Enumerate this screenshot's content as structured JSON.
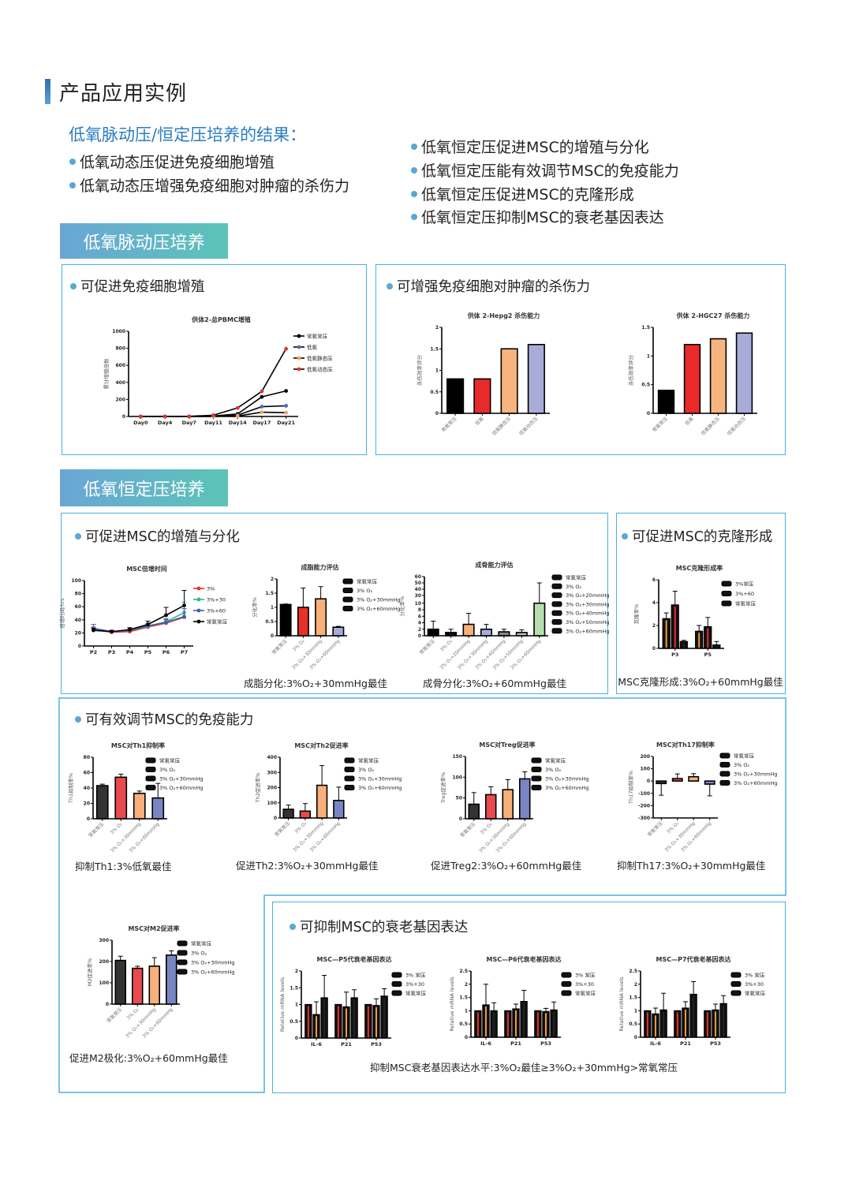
{
  "header": {
    "title": "产品应用实例"
  },
  "summary": {
    "heading": "低氧脉动压/恒定压培养的结果：",
    "left": [
      "低氧动态压促进免疫细胞增殖",
      "低氧动态压增强免疫细胞对肿瘤的杀伤力"
    ],
    "right": [
      "低氧恒定压促进MSC的增殖与分化",
      "低氧恒定压能有效调节MSC的免疫能力",
      "低氧恒定压促进MSC的克隆形成",
      "低氧恒定压抑制MSC的衰老基因表达"
    ]
  },
  "sections": {
    "pulse_banner": "低氧脉动压培养",
    "constant_banner": "低氧恒定压培养"
  },
  "panels": {
    "pbmc": "可促进免疫细胞增殖",
    "kill": "可增强免疫细胞对肿瘤的杀伤力",
    "msc_diff": "可促进MSC的增殖与分化",
    "clone": "可促进MSC的克隆形成",
    "immune": "可有效调节MSC的免疫能力",
    "senescence": "可抑制MSC的衰老基因表达"
  },
  "captions": {
    "adipo": "成脂分化:3%O₂+30mmHg最佳",
    "osteo": "成骨分化:3%O₂+60mmHg最佳",
    "clone": "MSC克隆形成:3%O₂+60mmHg最佳",
    "th1": "抑制Th1:3%低氧最佳",
    "th2": "促进Th2:3%O₂+30mmHg最佳",
    "treg": "促进Treg2:3%O₂+60mmHg最佳",
    "th17": "抑制Th17:3%O₂+30mmHg最佳",
    "m2": "促进M2极化:3%O₂+60mmHg最佳",
    "senescence": "抑制MSC衰老基因表达水平:3%O₂最佳≥3%O₂+30mmHg>常氧常压"
  },
  "colors": {
    "accent": "#2a7dc0",
    "border": "#4ab0e0",
    "banner_from": "#6aa6d6",
    "banner_to": "#5cc4b8"
  },
  "chart_data": [
    {
      "id": "pbmc",
      "type": "line",
      "title": "供体2-总PBMC增殖",
      "ylabel": "累计增殖倍数",
      "ylim": [
        0,
        1000
      ],
      "yticks": [
        0,
        200,
        400,
        600,
        800,
        1000
      ],
      "x": [
        "Day0",
        "Day4",
        "Day7",
        "Day11",
        "Day14",
        "Day17",
        "Day21"
      ],
      "series": [
        {
          "name": "常氧常压",
          "color": "#000000",
          "values": [
            0,
            0,
            0,
            5,
            30,
            230,
            300
          ]
        },
        {
          "name": "低氧",
          "color": "#4a6fc0",
          "values": [
            0,
            0,
            0,
            3,
            15,
            115,
            125
          ]
        },
        {
          "name": "低氧静态压",
          "color": "#f5a05a",
          "values": [
            0,
            0,
            0,
            2,
            5,
            50,
            45
          ]
        },
        {
          "name": "低氧动态压",
          "color": "#e83030",
          "values": [
            0,
            0,
            2,
            15,
            100,
            295,
            795
          ]
        }
      ]
    },
    {
      "id": "hepg2",
      "type": "bar",
      "title": "供体 2-Hepg2 杀伤能力",
      "ylabel": "杀伤效率评分",
      "ylim": [
        0,
        2
      ],
      "yticks": [
        0,
        0.5,
        1.0,
        1.5,
        2.0
      ],
      "categories": [
        "常氧常压",
        "低氧",
        "低氧静态压",
        "低氧动态压"
      ],
      "colors": [
        "#000000",
        "#e82a2a",
        "#f8b47e",
        "#a9acd8"
      ],
      "values": [
        0.8,
        0.8,
        1.5,
        1.6
      ]
    },
    {
      "id": "hgc27",
      "type": "bar",
      "title": "供体 2-HGC27 杀伤能力",
      "ylabel": "杀伤效率评分",
      "ylim": [
        0,
        1.5
      ],
      "yticks": [
        0,
        0.5,
        1.0,
        1.5
      ],
      "categories": [
        "常氧常压",
        "低氧",
        "低氧静态压",
        "低氧动态压"
      ],
      "colors": [
        "#000000",
        "#e82a2a",
        "#f8b47e",
        "#a9acd8"
      ],
      "values": [
        0.4,
        1.2,
        1.3,
        1.4
      ]
    },
    {
      "id": "doubling",
      "type": "line",
      "title": "MSC倍增时间",
      "ylabel": "倍增时间/hrs",
      "ylim": [
        0,
        100
      ],
      "yticks": [
        0,
        20,
        40,
        60,
        80,
        100
      ],
      "x": [
        "P2",
        "P3",
        "P4",
        "P5",
        "P6",
        "P7"
      ],
      "series": [
        {
          "name": "3%",
          "color": "#e83030",
          "values": [
            25,
            21,
            22,
            29,
            35,
            44
          ],
          "errors": [
            4,
            2,
            2,
            4,
            5,
            13
          ]
        },
        {
          "name": "3%+30",
          "color": "#2fb58a",
          "values": [
            24,
            22,
            24,
            30,
            37,
            51
          ],
          "errors": [
            3,
            2,
            3,
            5,
            5,
            16
          ]
        },
        {
          "name": "3%+60",
          "color": "#3a5fb0",
          "values": [
            27,
            22,
            24,
            31,
            36,
            45
          ],
          "errors": [
            6,
            2,
            3,
            4,
            5,
            12
          ]
        },
        {
          "name": "常氧常压",
          "color": "#000000",
          "values": [
            24,
            22,
            25,
            33,
            47,
            62
          ],
          "errors": [
            3,
            2,
            3,
            5,
            12,
            23
          ]
        }
      ]
    },
    {
      "id": "adipo",
      "type": "bar",
      "title": "成脂能力评估",
      "ylabel": "分化率%",
      "ylim": [
        0,
        2
      ],
      "yticks": [
        0,
        0.5,
        1.0,
        1.5,
        2.0
      ],
      "categories": [
        "常氧常压",
        "3% O₂",
        "3% O₂+30mmHg",
        "3% O₂+60mmHg"
      ],
      "colors": [
        "#000000",
        "#e8302a",
        "#f8b07a",
        "#a9acd8"
      ],
      "values": [
        1.1,
        1.0,
        1.3,
        0.3
      ],
      "errors": [
        0.02,
        0.68,
        0.43,
        0.03
      ]
    },
    {
      "id": "osteo",
      "type": "bar",
      "title": "成骨能力评估",
      "ylabel": "分化率%",
      "ylim": [
        0,
        60
      ],
      "break": [
        10,
        30
      ],
      "yticks": [
        0,
        2,
        4,
        6,
        8,
        10,
        30,
        40,
        50,
        60
      ],
      "categories": [
        "常氧常压",
        "3% O₂",
        "3% O₂+20mmHg",
        "3% O₂+30mmHg",
        "3% O₂+40mmHg",
        "3% O₂+50mmHg",
        "3% O₂+60mmHg"
      ],
      "colors": [
        "#000000",
        "#111111",
        "#f8b07a",
        "#a9acd8",
        "#888888",
        "#bbbbbb",
        "#b8ddb0"
      ],
      "values": [
        2,
        1,
        3.5,
        2,
        1.2,
        1,
        10
      ],
      "errors": [
        2.5,
        1,
        3.4,
        1.5,
        0.8,
        0.8,
        40
      ]
    },
    {
      "id": "clone",
      "type": "grouped",
      "title": "MSC克隆形成率",
      "ylabel": "克隆率%",
      "ylim": [
        0,
        6
      ],
      "yticks": [
        0,
        2,
        4,
        6
      ],
      "categories": [
        "P3",
        "P5"
      ],
      "series": [
        {
          "name": "3%常压",
          "color": "#f39a3a",
          "values": [
            2.6,
            1.5
          ],
          "errors": [
            0.5,
            0.5
          ]
        },
        {
          "name": "3%+60",
          "color": "#e8302a",
          "values": [
            3.8,
            1.9
          ],
          "errors": [
            1.2,
            0.8
          ]
        },
        {
          "name": "常氧常压",
          "color": "#222222",
          "values": [
            0.6,
            0.3
          ],
          "errors": [
            0.1,
            0.3
          ]
        }
      ]
    },
    {
      "id": "th1",
      "type": "bar",
      "title": "MSC对Th1抑制率",
      "ylabel": "Th1抑制率%",
      "ylim": [
        0,
        80
      ],
      "yticks": [
        0,
        20,
        40,
        60,
        80
      ],
      "categories": [
        "常氧常压",
        "3% O₂",
        "3% O₂+30mmHg",
        "3% O₂+60mmHg"
      ],
      "colors": [
        "#333333",
        "#e84a50",
        "#f8b07a",
        "#7a86c4"
      ],
      "values": [
        43,
        54,
        33,
        27
      ],
      "errors": [
        2,
        4,
        3,
        19
      ]
    },
    {
      "id": "th2",
      "type": "bar",
      "title": "MSC对Th2促进率",
      "ylabel": "Th2促进率%",
      "ylim": [
        0,
        400
      ],
      "yticks": [
        0,
        100,
        200,
        300,
        400
      ],
      "categories": [
        "常氧常压",
        "3% O₂",
        "3% O₂+30mmHg",
        "3% O₂+60mmHg"
      ],
      "colors": [
        "#333333",
        "#e84a50",
        "#f8b07a",
        "#7a86c4"
      ],
      "values": [
        57,
        45,
        215,
        115
      ],
      "errors": [
        28,
        50,
        130,
        88
      ]
    },
    {
      "id": "treg",
      "type": "bar",
      "title": "MSC对Treg促进率",
      "ylabel": "Treg促进率%",
      "ylim": [
        0,
        150
      ],
      "yticks": [
        0,
        50,
        100,
        150
      ],
      "categories": [
        "常氧常压",
        "3% O₂",
        "3% O₂+30mmHg",
        "3% O₂+60mmHg"
      ],
      "colors": [
        "#333333",
        "#e84a50",
        "#f8b07a",
        "#7a86c4"
      ],
      "values": [
        35,
        58,
        70,
        96
      ],
      "errors": [
        28,
        19,
        24,
        17
      ]
    },
    {
      "id": "th17",
      "type": "bar",
      "title": "MSC对Th17抑制率",
      "ylabel": "Th17抑制率%",
      "ylim": [
        -300,
        200
      ],
      "yticks": [
        -300,
        -200,
        -100,
        0,
        100,
        200
      ],
      "categories": [
        "常氧常压",
        "3% O₂",
        "3% O₂+30mmHg",
        "3% O₂+60mmHg"
      ],
      "colors": [
        "#333333",
        "#e84a50",
        "#f8b07a",
        "#7a86c4"
      ],
      "values": [
        -20,
        20,
        35,
        -25
      ],
      "errors": [
        95,
        38,
        25,
        95
      ]
    },
    {
      "id": "m2",
      "type": "bar",
      "title": "MSC对M2促进率",
      "ylabel": "M2促进率%",
      "ylim": [
        0,
        300
      ],
      "yticks": [
        0,
        100,
        200,
        300
      ],
      "categories": [
        "常氧常压",
        "3% O₂",
        "3% O₂+30mmHg",
        "3% O₂+60mmHg"
      ],
      "colors": [
        "#333333",
        "#e84a50",
        "#f8b07a",
        "#7a86c4"
      ],
      "values": [
        205,
        168,
        178,
        230
      ],
      "errors": [
        20,
        10,
        40,
        20
      ]
    },
    {
      "id": "p5",
      "type": "grouped",
      "title": "MSC—P5代衰老基因表达",
      "ylabel": "Relative mRNA levels",
      "ylim": [
        0,
        2
      ],
      "yticks": [
        0,
        0.5,
        1.0,
        1.5,
        2.0
      ],
      "categories": [
        "IL-6",
        "P21",
        "P53"
      ],
      "series": [
        {
          "name": "3% 常压",
          "color": "#e8302a",
          "values": [
            1,
            1,
            1
          ],
          "errors": [
            0,
            0,
            0
          ]
        },
        {
          "name": "3%+30",
          "color": "#f39a3a",
          "values": [
            0.7,
            0.93,
            0.97
          ],
          "errors": [
            0.38,
            0.44,
            0.2
          ]
        },
        {
          "name": "常氧常压",
          "color": "#222222",
          "values": [
            1.2,
            1.2,
            1.25
          ],
          "errors": [
            0.67,
            0.24,
            0.22
          ]
        }
      ]
    },
    {
      "id": "p6",
      "type": "grouped",
      "title": "MSC—P6代衰老基因表达",
      "ylabel": "Relative mRNA levels",
      "ylim": [
        0,
        2.5
      ],
      "yticks": [
        0,
        0.5,
        1.0,
        1.5,
        2.0,
        2.5
      ],
      "categories": [
        "IL-6",
        "P21",
        "P53"
      ],
      "series": [
        {
          "name": "3% 常压",
          "color": "#e8302a",
          "values": [
            1,
            1,
            1
          ],
          "errors": [
            0,
            0,
            0
          ]
        },
        {
          "name": "3%+30",
          "color": "#f39a3a",
          "values": [
            1.22,
            1.07,
            0.97
          ],
          "errors": [
            0.78,
            0.18,
            0.12
          ]
        },
        {
          "name": "常氧常压",
          "color": "#222222",
          "values": [
            1.0,
            1.35,
            1.03
          ],
          "errors": [
            0.3,
            0.42,
            0.3
          ]
        }
      ]
    },
    {
      "id": "p7",
      "type": "grouped",
      "title": "MSC—P7代衰老基因表达",
      "ylabel": "Relative mRNA levels",
      "ylim": [
        0,
        2.5
      ],
      "yticks": [
        0,
        0.5,
        1.0,
        1.5,
        2.0,
        2.5
      ],
      "categories": [
        "IL-6",
        "P21",
        "P53"
      ],
      "series": [
        {
          "name": "3% 常压",
          "color": "#e8302a",
          "values": [
            1,
            1,
            1
          ],
          "errors": [
            0,
            0,
            0
          ]
        },
        {
          "name": "3%+30",
          "color": "#f39a3a",
          "values": [
            0.88,
            1.1,
            1.03
          ],
          "errors": [
            0.22,
            0.24,
            0.22
          ]
        },
        {
          "name": "常氧常压",
          "color": "#222222",
          "values": [
            1.03,
            1.62,
            1.27
          ],
          "errors": [
            0.63,
            0.48,
            0.3
          ]
        }
      ]
    }
  ]
}
